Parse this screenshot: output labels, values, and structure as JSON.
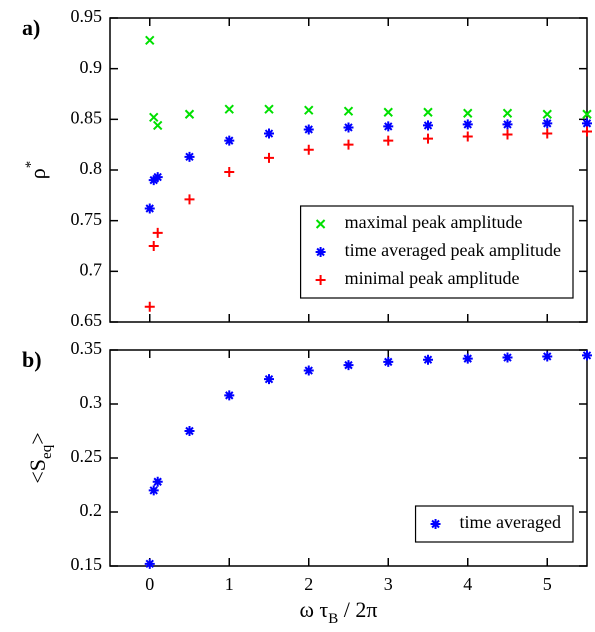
{
  "chart_data": [
    {
      "type": "scatter",
      "panel_label": "a)",
      "ylabel": [
        "ρ",
        "*"
      ],
      "xlim": [
        -0.5,
        5.5
      ],
      "xticks": [
        0,
        1,
        2,
        3,
        4,
        5
      ],
      "ylim": [
        0.65,
        0.95
      ],
      "yticks": [
        0.65,
        0.7,
        0.75,
        0.8,
        0.85,
        0.9,
        0.95
      ],
      "legend": "lower right",
      "series": [
        {
          "name": "maximal peak amplitude",
          "color": "#00e000",
          "marker": "x",
          "x": [
            0,
            0.05,
            0.1,
            0.5,
            1,
            1.5,
            2,
            2.5,
            3,
            3.5,
            4,
            4.5,
            5,
            5.5
          ],
          "values": [
            0.928,
            0.852,
            0.844,
            0.855,
            0.86,
            0.86,
            0.859,
            0.858,
            0.857,
            0.857,
            0.856,
            0.856,
            0.855,
            0.855
          ]
        },
        {
          "name": "time averaged peak amplitude",
          "color": "#0000ff",
          "marker": "asterisk",
          "x": [
            0,
            0.05,
            0.1,
            0.5,
            1,
            1.5,
            2,
            2.5,
            3,
            3.5,
            4,
            4.5,
            5,
            5.5
          ],
          "values": [
            0.762,
            0.79,
            0.793,
            0.813,
            0.829,
            0.836,
            0.84,
            0.842,
            0.843,
            0.844,
            0.845,
            0.845,
            0.846,
            0.846
          ]
        },
        {
          "name": "minimal peak amplitude",
          "color": "#ff0000",
          "marker": "plus",
          "x": [
            0,
            0.05,
            0.1,
            0.5,
            1,
            1.5,
            2,
            2.5,
            3,
            3.5,
            4,
            4.5,
            5,
            5.5
          ],
          "values": [
            0.665,
            0.725,
            0.738,
            0.771,
            0.798,
            0.812,
            0.82,
            0.825,
            0.829,
            0.831,
            0.833,
            0.835,
            0.836,
            0.838
          ]
        }
      ]
    },
    {
      "type": "scatter",
      "panel_label": "b)",
      "ylabel": [
        "<S",
        "eq",
        ">"
      ],
      "xlabel": [
        "ω τ",
        "B",
        " / 2π"
      ],
      "xlim": [
        -0.5,
        5.5
      ],
      "xticks": [
        0,
        1,
        2,
        3,
        4,
        5
      ],
      "ylim": [
        0.15,
        0.35
      ],
      "yticks": [
        0.15,
        0.2,
        0.25,
        0.3,
        0.35
      ],
      "legend": "lower right",
      "series": [
        {
          "name": "time averaged",
          "color": "#0000ff",
          "marker": "asterisk",
          "x": [
            0,
            0.05,
            0.1,
            0.5,
            1,
            1.5,
            2,
            2.5,
            3,
            3.5,
            4,
            4.5,
            5,
            5.5
          ],
          "values": [
            0.152,
            0.22,
            0.228,
            0.275,
            0.308,
            0.323,
            0.331,
            0.336,
            0.339,
            0.341,
            0.342,
            0.343,
            0.344,
            0.345
          ]
        }
      ]
    }
  ]
}
